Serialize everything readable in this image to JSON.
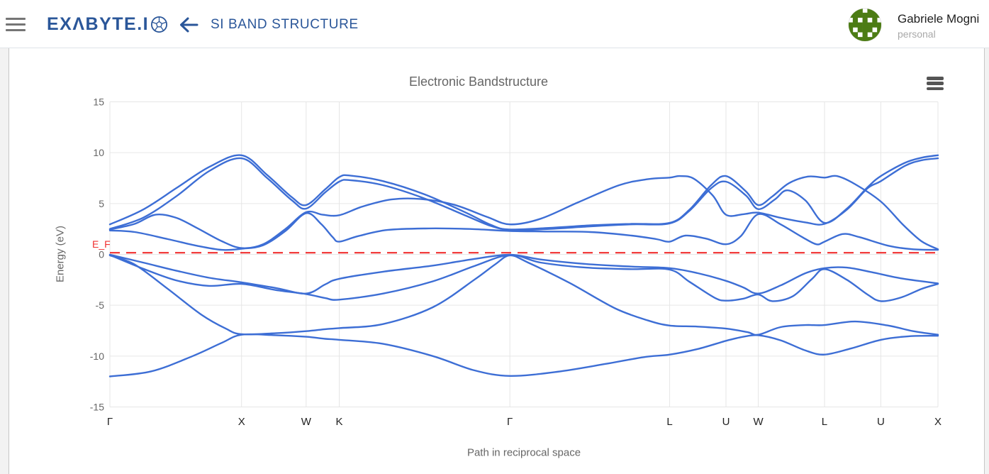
{
  "header": {
    "logo_text": "EXΛBYTE.I",
    "page_title": "SI BAND STRUCTURE",
    "user": {
      "name": "Gabriele Mogni",
      "role": "personal"
    }
  },
  "chart": {
    "title": "Electronic Bandstructure",
    "xlabel": "Path in reciprocal space",
    "ylabel": "Energy (eV)",
    "fermi_label": "E_F"
  },
  "icons": {
    "menu": "hamburger-bars",
    "back": "arrow-left",
    "logo_ball": "fullerene-ball",
    "chart_menu": "hamburger-bars",
    "avatar": "green-identicon"
  },
  "colors": {
    "band": "#3d6ed5",
    "fermi": "#f03030",
    "grid": "#e6e6e6",
    "navy": "#2a5699",
    "tick_label": "#666666",
    "k_label": "#222222",
    "avatar_green": "#4c7c14"
  },
  "avatar_pattern": [
    "0110110",
    "1111111",
    "0101010",
    "1111111",
    "1011101",
    "1101011",
    "0111110"
  ],
  "chart_data": {
    "type": "line",
    "title": "Electronic Bandstructure",
    "xlabel": "Path in reciprocal space",
    "ylabel": "Energy (eV)",
    "ylim": [
      -15,
      15
    ],
    "y_ticks": [
      15,
      10,
      5,
      0,
      -5,
      -10,
      -15
    ],
    "grid": true,
    "legend": "none",
    "fermi_energy_ev": 0.16,
    "k_points": {
      "labels": [
        "Γ",
        "X",
        "W",
        "K",
        "Γ",
        "L",
        "U",
        "W",
        "L",
        "U",
        "X"
      ],
      "fractions": [
        0,
        0.159,
        0.237,
        0.277,
        0.483,
        0.676,
        0.744,
        0.783,
        0.863,
        0.931,
        1.0
      ]
    },
    "series": [
      {
        "name": "band-1",
        "points": [
          [
            0,
            -12.0
          ],
          [
            0.05,
            -11.5
          ],
          [
            0.1,
            -10.0
          ],
          [
            0.135,
            -8.7
          ],
          [
            0.159,
            -7.9
          ],
          [
            0.2,
            -7.95
          ],
          [
            0.237,
            -8.1
          ],
          [
            0.26,
            -8.3
          ],
          [
            0.277,
            -8.4
          ],
          [
            0.33,
            -8.8
          ],
          [
            0.39,
            -10.0
          ],
          [
            0.44,
            -11.4
          ],
          [
            0.483,
            -11.95
          ],
          [
            0.54,
            -11.55
          ],
          [
            0.6,
            -10.75
          ],
          [
            0.645,
            -10.1
          ],
          [
            0.676,
            -9.85
          ],
          [
            0.71,
            -9.3
          ],
          [
            0.744,
            -8.5
          ],
          [
            0.765,
            -8.1
          ],
          [
            0.783,
            -7.95
          ],
          [
            0.81,
            -8.45
          ],
          [
            0.84,
            -9.45
          ],
          [
            0.863,
            -9.85
          ],
          [
            0.895,
            -9.25
          ],
          [
            0.931,
            -8.4
          ],
          [
            0.965,
            -8.05
          ],
          [
            1,
            -8.0
          ]
        ]
      },
      {
        "name": "band-2",
        "points": [
          [
            0,
            -0.1
          ],
          [
            0.03,
            -1.0
          ],
          [
            0.07,
            -3.4
          ],
          [
            0.11,
            -5.9
          ],
          [
            0.14,
            -7.3
          ],
          [
            0.159,
            -7.85
          ],
          [
            0.2,
            -7.75
          ],
          [
            0.237,
            -7.55
          ],
          [
            0.26,
            -7.35
          ],
          [
            0.277,
            -7.25
          ],
          [
            0.33,
            -6.85
          ],
          [
            0.39,
            -5.2
          ],
          [
            0.44,
            -2.5
          ],
          [
            0.465,
            -1.0
          ],
          [
            0.483,
            -0.1
          ],
          [
            0.505,
            -0.8
          ],
          [
            0.555,
            -2.8
          ],
          [
            0.61,
            -5.3
          ],
          [
            0.65,
            -6.5
          ],
          [
            0.676,
            -7.0
          ],
          [
            0.71,
            -7.1
          ],
          [
            0.744,
            -7.3
          ],
          [
            0.77,
            -7.65
          ],
          [
            0.783,
            -7.9
          ],
          [
            0.81,
            -7.15
          ],
          [
            0.84,
            -6.95
          ],
          [
            0.863,
            -6.95
          ],
          [
            0.9,
            -6.6
          ],
          [
            0.94,
            -7.0
          ],
          [
            0.97,
            -7.55
          ],
          [
            1,
            -7.9
          ]
        ]
      },
      {
        "name": "band-3",
        "points": [
          [
            0,
            -0.06
          ],
          [
            0.04,
            -1.4
          ],
          [
            0.08,
            -2.55
          ],
          [
            0.12,
            -3.1
          ],
          [
            0.159,
            -2.9
          ],
          [
            0.2,
            -3.5
          ],
          [
            0.237,
            -3.9
          ],
          [
            0.26,
            -4.3
          ],
          [
            0.277,
            -4.45
          ],
          [
            0.33,
            -3.85
          ],
          [
            0.39,
            -2.65
          ],
          [
            0.44,
            -1.15
          ],
          [
            0.483,
            -0.06
          ],
          [
            0.52,
            -0.8
          ],
          [
            0.575,
            -1.3
          ],
          [
            0.63,
            -1.45
          ],
          [
            0.676,
            -1.5
          ],
          [
            0.7,
            -2.7
          ],
          [
            0.73,
            -4.25
          ],
          [
            0.744,
            -4.55
          ],
          [
            0.765,
            -4.35
          ],
          [
            0.783,
            -3.95
          ],
          [
            0.8,
            -4.6
          ],
          [
            0.825,
            -4.1
          ],
          [
            0.848,
            -2.4
          ],
          [
            0.863,
            -1.45
          ],
          [
            0.89,
            -2.5
          ],
          [
            0.915,
            -3.95
          ],
          [
            0.931,
            -4.6
          ],
          [
            0.955,
            -4.25
          ],
          [
            0.98,
            -3.4
          ],
          [
            1,
            -2.9
          ]
        ]
      },
      {
        "name": "band-4",
        "points": [
          [
            0,
            -0.03
          ],
          [
            0.04,
            -0.8
          ],
          [
            0.08,
            -1.6
          ],
          [
            0.12,
            -2.3
          ],
          [
            0.159,
            -2.75
          ],
          [
            0.2,
            -3.3
          ],
          [
            0.237,
            -3.85
          ],
          [
            0.26,
            -2.95
          ],
          [
            0.277,
            -2.4
          ],
          [
            0.33,
            -1.7
          ],
          [
            0.39,
            -1.1
          ],
          [
            0.44,
            -0.45
          ],
          [
            0.483,
            -0.03
          ],
          [
            0.52,
            -0.5
          ],
          [
            0.575,
            -0.95
          ],
          [
            0.63,
            -1.2
          ],
          [
            0.676,
            -1.35
          ],
          [
            0.71,
            -1.85
          ],
          [
            0.744,
            -2.6
          ],
          [
            0.765,
            -3.25
          ],
          [
            0.783,
            -3.85
          ],
          [
            0.81,
            -3.05
          ],
          [
            0.84,
            -1.85
          ],
          [
            0.863,
            -1.35
          ],
          [
            0.89,
            -1.3
          ],
          [
            0.92,
            -1.75
          ],
          [
            0.955,
            -2.35
          ],
          [
            1,
            -2.85
          ]
        ]
      },
      {
        "name": "band-5",
        "points": [
          [
            0,
            2.35
          ],
          [
            0.03,
            2.2
          ],
          [
            0.07,
            1.5
          ],
          [
            0.105,
            0.85
          ],
          [
            0.135,
            0.45
          ],
          [
            0.159,
            0.55
          ],
          [
            0.185,
            0.9
          ],
          [
            0.212,
            2.3
          ],
          [
            0.237,
            4.05
          ],
          [
            0.255,
            3.0
          ],
          [
            0.269,
            1.7
          ],
          [
            0.277,
            1.25
          ],
          [
            0.3,
            1.8
          ],
          [
            0.335,
            2.4
          ],
          [
            0.385,
            2.55
          ],
          [
            0.435,
            2.5
          ],
          [
            0.483,
            2.3
          ],
          [
            0.53,
            2.25
          ],
          [
            0.58,
            2.2
          ],
          [
            0.63,
            1.85
          ],
          [
            0.66,
            1.5
          ],
          [
            0.676,
            1.25
          ],
          [
            0.695,
            1.85
          ],
          [
            0.72,
            1.55
          ],
          [
            0.744,
            1.0
          ],
          [
            0.762,
            1.8
          ],
          [
            0.783,
            3.95
          ],
          [
            0.81,
            2.95
          ],
          [
            0.835,
            1.75
          ],
          [
            0.853,
            1.0
          ],
          [
            0.863,
            1.25
          ],
          [
            0.885,
            2.0
          ],
          [
            0.905,
            1.7
          ],
          [
            0.94,
            0.85
          ],
          [
            0.97,
            0.5
          ],
          [
            1,
            0.45
          ]
        ]
      },
      {
        "name": "band-6",
        "points": [
          [
            0,
            2.45
          ],
          [
            0.03,
            3.0
          ],
          [
            0.055,
            3.9
          ],
          [
            0.08,
            3.6
          ],
          [
            0.105,
            2.6
          ],
          [
            0.135,
            1.3
          ],
          [
            0.159,
            0.62
          ],
          [
            0.185,
            1.0
          ],
          [
            0.212,
            2.5
          ],
          [
            0.237,
            4.15
          ],
          [
            0.257,
            3.9
          ],
          [
            0.277,
            3.85
          ],
          [
            0.305,
            4.7
          ],
          [
            0.34,
            5.4
          ],
          [
            0.375,
            5.45
          ],
          [
            0.415,
            4.9
          ],
          [
            0.455,
            3.7
          ],
          [
            0.483,
            2.95
          ],
          [
            0.52,
            3.5
          ],
          [
            0.565,
            5.1
          ],
          [
            0.615,
            6.8
          ],
          [
            0.65,
            7.4
          ],
          [
            0.676,
            7.55
          ],
          [
            0.688,
            7.7
          ],
          [
            0.705,
            7.45
          ],
          [
            0.728,
            5.8
          ],
          [
            0.744,
            3.9
          ],
          [
            0.765,
            3.95
          ],
          [
            0.783,
            4.1
          ],
          [
            0.81,
            3.6
          ],
          [
            0.84,
            3.15
          ],
          [
            0.863,
            3.0
          ],
          [
            0.89,
            4.4
          ],
          [
            0.915,
            6.5
          ],
          [
            0.931,
            7.2
          ],
          [
            0.96,
            8.7
          ],
          [
            0.98,
            9.25
          ],
          [
            1,
            9.45
          ]
        ]
      },
      {
        "name": "band-7",
        "points": [
          [
            0,
            2.5
          ],
          [
            0.04,
            3.6
          ],
          [
            0.08,
            5.7
          ],
          [
            0.12,
            8.2
          ],
          [
            0.159,
            9.45
          ],
          [
            0.19,
            7.5
          ],
          [
            0.22,
            5.3
          ],
          [
            0.237,
            4.5
          ],
          [
            0.26,
            6.1
          ],
          [
            0.277,
            7.15
          ],
          [
            0.29,
            7.3
          ],
          [
            0.33,
            6.8
          ],
          [
            0.38,
            5.5
          ],
          [
            0.43,
            3.8
          ],
          [
            0.46,
            2.8
          ],
          [
            0.483,
            2.45
          ],
          [
            0.53,
            2.6
          ],
          [
            0.58,
            2.85
          ],
          [
            0.63,
            3.0
          ],
          [
            0.676,
            3.1
          ],
          [
            0.7,
            4.4
          ],
          [
            0.726,
            6.8
          ],
          [
            0.744,
            7.7
          ],
          [
            0.768,
            6.2
          ],
          [
            0.783,
            4.85
          ],
          [
            0.8,
            5.7
          ],
          [
            0.82,
            7.0
          ],
          [
            0.843,
            7.65
          ],
          [
            0.863,
            7.55
          ],
          [
            0.878,
            7.7
          ],
          [
            0.9,
            6.9
          ],
          [
            0.931,
            5.2
          ],
          [
            0.958,
            2.9
          ],
          [
            0.98,
            1.3
          ],
          [
            1,
            0.5
          ]
        ]
      },
      {
        "name": "band-8",
        "points": [
          [
            0,
            2.95
          ],
          [
            0.04,
            4.4
          ],
          [
            0.08,
            6.5
          ],
          [
            0.12,
            8.6
          ],
          [
            0.159,
            9.75
          ],
          [
            0.19,
            7.8
          ],
          [
            0.22,
            5.6
          ],
          [
            0.237,
            4.85
          ],
          [
            0.26,
            6.4
          ],
          [
            0.277,
            7.6
          ],
          [
            0.29,
            7.75
          ],
          [
            0.33,
            7.2
          ],
          [
            0.38,
            5.9
          ],
          [
            0.43,
            4.1
          ],
          [
            0.46,
            2.9
          ],
          [
            0.483,
            2.4
          ],
          [
            0.53,
            2.5
          ],
          [
            0.58,
            2.75
          ],
          [
            0.63,
            2.95
          ],
          [
            0.676,
            3.05
          ],
          [
            0.7,
            4.3
          ],
          [
            0.726,
            6.5
          ],
          [
            0.744,
            7.15
          ],
          [
            0.768,
            5.8
          ],
          [
            0.783,
            4.45
          ],
          [
            0.803,
            5.4
          ],
          [
            0.818,
            6.3
          ],
          [
            0.84,
            5.3
          ],
          [
            0.863,
            3.1
          ],
          [
            0.89,
            4.5
          ],
          [
            0.915,
            6.6
          ],
          [
            0.931,
            7.7
          ],
          [
            0.96,
            9.0
          ],
          [
            0.98,
            9.5
          ],
          [
            1,
            9.75
          ]
        ]
      }
    ]
  }
}
